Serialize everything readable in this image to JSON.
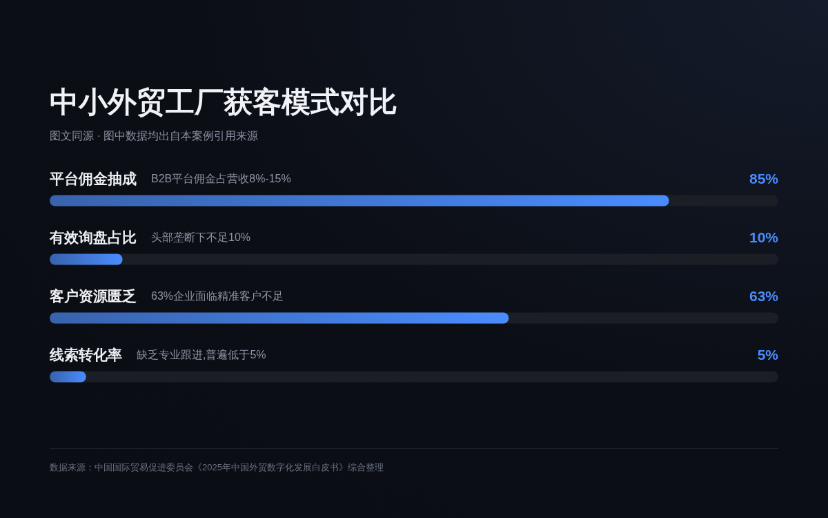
{
  "chart_data": {
    "type": "bar",
    "orientation": "horizontal",
    "title": "中小外贸工厂获客模式对比",
    "subtitle": "图文同源 · 图中数据均出自本案例引用来源",
    "categories": [
      "平台佣金抽成",
      "有效询盘占比",
      "客户资源匮乏",
      "线索转化率"
    ],
    "values": [
      85,
      10,
      63,
      5
    ],
    "color": "#4a8cff",
    "value_labels": [
      "85%",
      "10%",
      "63%",
      "5%"
    ],
    "xlim": [
      0,
      100
    ],
    "tick_labels": "y",
    "annotations": [
      "B2B平台佣金占营收8%-15%",
      "头部垄断下不足10%",
      "63%企业面临精准客户不足",
      "缺乏专业跟进,普遍低于5%",
      "数据来源：中国国际贸易促进委员会《2025年中国外贸数字化发展白皮书》综合整理"
    ]
  }
}
